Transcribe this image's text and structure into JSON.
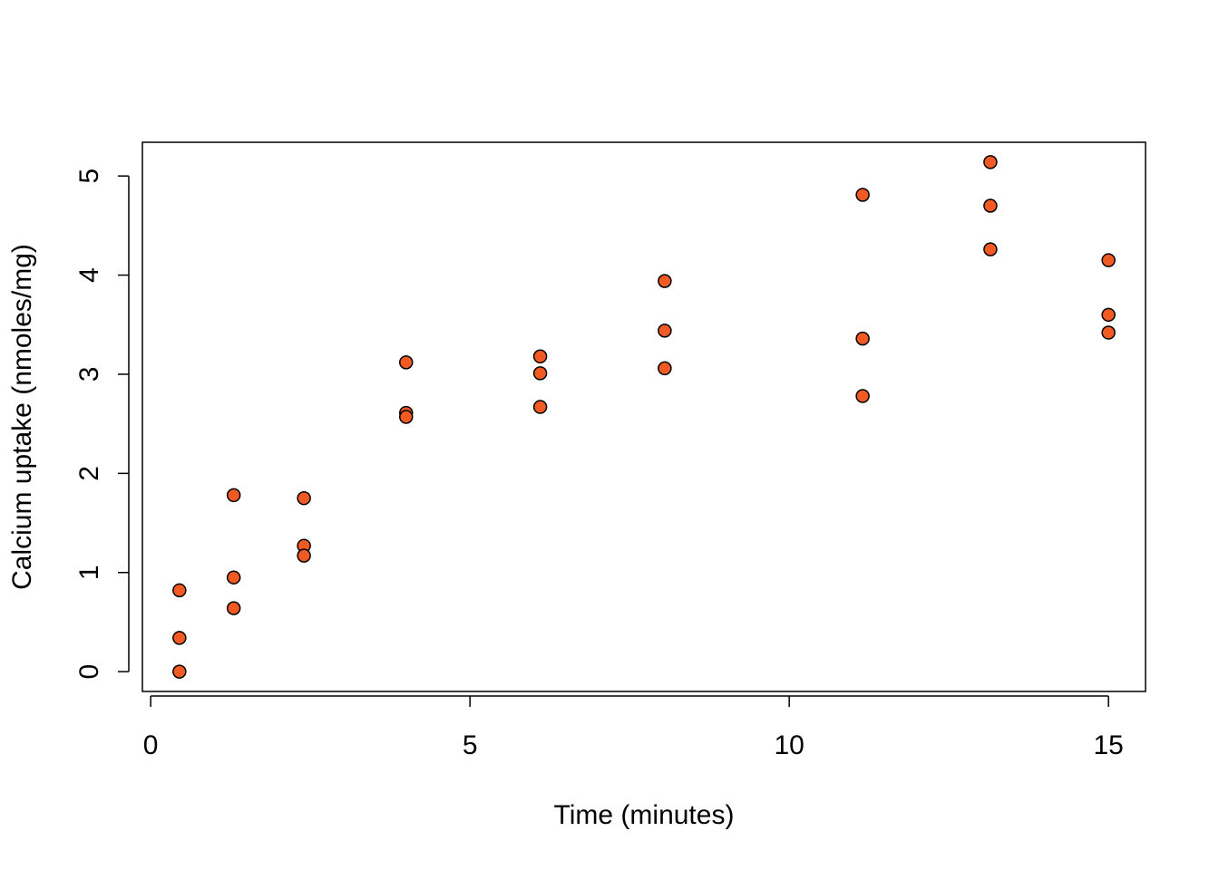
{
  "chart_data": {
    "type": "scatter",
    "x_label": "Time (minutes)",
    "y_label": "Calcium uptake (nmoles/mg)",
    "x": [
      0.45,
      0.45,
      0.45,
      1.3,
      1.3,
      1.3,
      2.4,
      2.4,
      2.4,
      4.0,
      4.0,
      4.0,
      6.1,
      6.1,
      6.1,
      8.05,
      8.05,
      8.05,
      11.15,
      11.15,
      11.15,
      13.15,
      13.15,
      13.15,
      15.0,
      15.0,
      15.0
    ],
    "values": [
      0.34,
      0.0,
      0.82,
      1.78,
      0.95,
      0.64,
      1.75,
      1.27,
      1.17,
      3.12,
      2.61,
      2.57,
      3.18,
      3.01,
      2.67,
      3.06,
      3.94,
      3.44,
      4.81,
      3.36,
      2.78,
      5.14,
      4.7,
      4.26,
      3.6,
      4.15,
      3.42
    ],
    "color": "#f15a22",
    "xlim": [
      -0.13,
      15.58
    ],
    "ylim": [
      -0.2,
      5.34
    ],
    "xticks": [
      0,
      5,
      10,
      15
    ],
    "yticks": [
      0,
      1,
      2,
      3,
      4,
      5
    ]
  }
}
